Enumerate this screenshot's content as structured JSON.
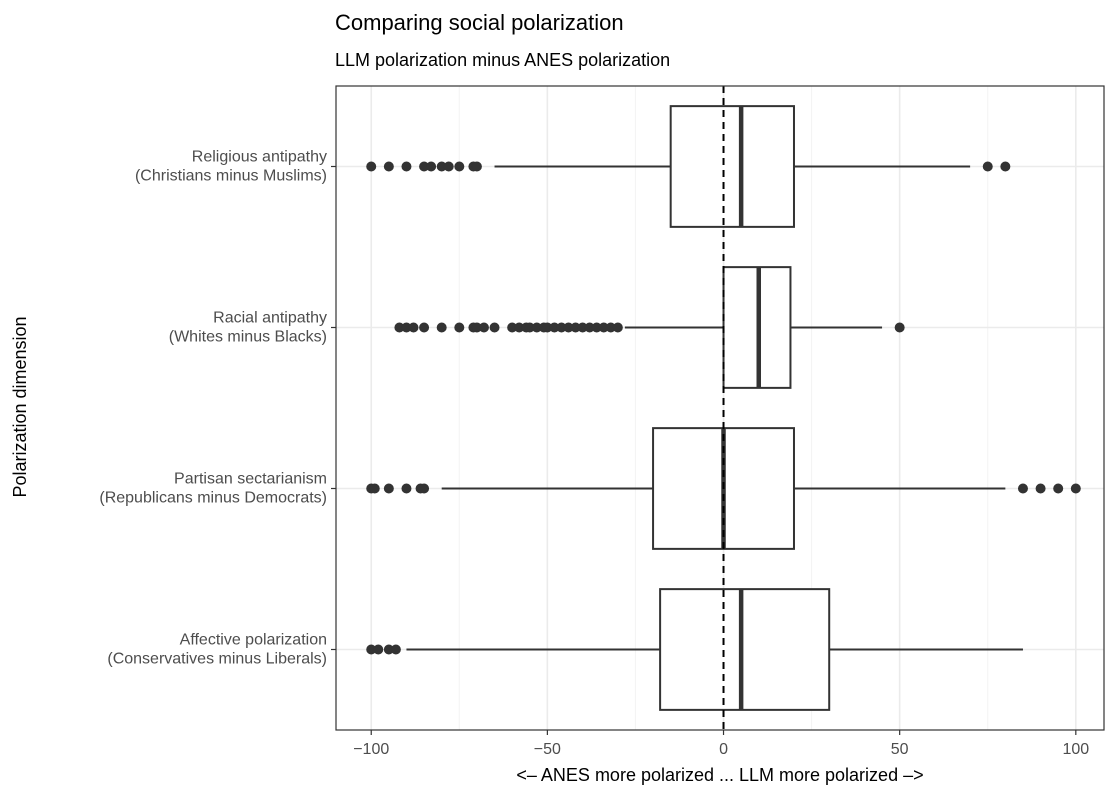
{
  "chart_data": {
    "type": "boxplot",
    "orientation": "horizontal",
    "title": "Comparing social polarization",
    "subtitle": "LLM polarization minus ANES polarization",
    "xlabel": "<– ANES more polarized ... LLM more polarized –>",
    "ylabel": "Polarization dimension",
    "xlim": [
      -110,
      108
    ],
    "x_ticks": [
      -100,
      -50,
      0,
      50,
      100
    ],
    "x_tick_labels": [
      "−100",
      "−50",
      "0",
      "50",
      "100"
    ],
    "reference_line": 0,
    "grid": true,
    "legend": "none",
    "categories": [
      {
        "label_line1": "Religious antipathy",
        "label_line2": "(Christians minus Muslims)",
        "q1": -15,
        "median": 5,
        "q3": 20,
        "whisker_low": -65,
        "whisker_high": 70,
        "outliers": [
          -100,
          -95,
          -90,
          -85,
          -83,
          -80,
          -78,
          -75,
          -71,
          -70,
          75,
          80
        ]
      },
      {
        "label_line1": "Racial antipathy",
        "label_line2": "(Whites minus Blacks)",
        "q1": 0,
        "median": 10,
        "q3": 19,
        "whisker_low": -28,
        "whisker_high": 45,
        "outliers": [
          -92,
          -90,
          -88,
          -85,
          -80,
          -75,
          -71,
          -70,
          -68,
          -65,
          -60,
          -58,
          -56,
          -55,
          -53,
          -51,
          -50,
          -48,
          -46,
          -44,
          -42,
          -40,
          -38,
          -36,
          -34,
          -32,
          -30,
          50
        ]
      },
      {
        "label_line1": "Partisan sectarianism",
        "label_line2": "(Republicans minus Democrats)",
        "q1": -20,
        "median": 0,
        "q3": 20,
        "whisker_low": -80,
        "whisker_high": 80,
        "outliers": [
          -100,
          -99,
          -95,
          -90,
          -86,
          -85,
          85,
          90,
          95,
          100
        ]
      },
      {
        "label_line1": "Affective polarization",
        "label_line2": "(Conservatives minus Liberals)",
        "q1": -18,
        "median": 5,
        "q3": 30,
        "whisker_low": -90,
        "whisker_high": 85,
        "outliers": [
          -100,
          -98,
          -95,
          -93
        ]
      }
    ],
    "colors": {
      "box_stroke": "#333333",
      "point": "#333333",
      "grid": "#ebebeb",
      "text": "#4d4d4d",
      "title": "#000000"
    }
  }
}
